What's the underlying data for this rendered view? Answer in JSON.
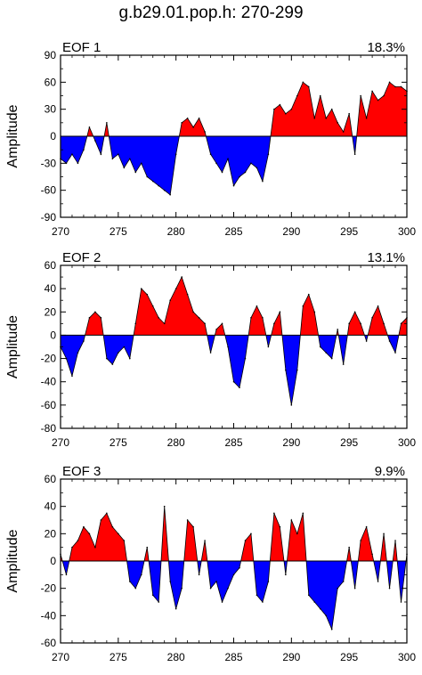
{
  "title": "g.b29.01.pop.h: 270-299",
  "colors": {
    "positive": "#ff0000",
    "negative": "#0000ff",
    "axis": "#000000"
  },
  "chart_data": [
    {
      "type": "area",
      "panel_label": "EOF 1",
      "variance_label": "18.3%",
      "ylabel": "Amplitude",
      "xlim": [
        270,
        300
      ],
      "ylim": [
        -90,
        90
      ],
      "xticks": [
        270,
        275,
        280,
        285,
        290,
        295,
        300
      ],
      "yticks": [
        -90,
        -60,
        -30,
        0,
        30,
        60,
        90
      ],
      "x": [
        270,
        270.5,
        271,
        271.5,
        272,
        272.5,
        273,
        273.5,
        274,
        274.5,
        275,
        275.5,
        276,
        276.5,
        277,
        277.5,
        278,
        278.5,
        279,
        279.5,
        280,
        280.5,
        281,
        281.5,
        282,
        282.5,
        283,
        283.5,
        284,
        284.5,
        285,
        285.5,
        286,
        286.5,
        287,
        287.5,
        288,
        288.5,
        289,
        289.5,
        290,
        290.5,
        291,
        291.5,
        292,
        292.5,
        293,
        293.5,
        294,
        294.5,
        295,
        295.5,
        296,
        296.5,
        297,
        297.5,
        298,
        298.5,
        299,
        299.5,
        300
      ],
      "y": [
        -25,
        -30,
        -20,
        -30,
        -15,
        10,
        -5,
        -20,
        15,
        -25,
        -20,
        -35,
        -25,
        -40,
        -30,
        -45,
        -50,
        -55,
        -60,
        -65,
        -20,
        15,
        20,
        10,
        20,
        5,
        -20,
        -30,
        -40,
        -25,
        -55,
        -45,
        -40,
        -30,
        -35,
        -50,
        -20,
        30,
        35,
        25,
        30,
        45,
        60,
        55,
        20,
        45,
        20,
        30,
        15,
        5,
        25,
        -20,
        45,
        20,
        50,
        40,
        45,
        60,
        55,
        55,
        50
      ]
    },
    {
      "type": "area",
      "panel_label": "EOF 2",
      "variance_label": "13.1%",
      "ylabel": "Amplitude",
      "xlim": [
        270,
        300
      ],
      "ylim": [
        -80,
        60
      ],
      "xticks": [
        270,
        275,
        280,
        285,
        290,
        295,
        300
      ],
      "yticks": [
        -80,
        -60,
        -40,
        -20,
        0,
        20,
        40,
        60
      ],
      "x": [
        270,
        270.5,
        271,
        271.5,
        272,
        272.5,
        273,
        273.5,
        274,
        274.5,
        275,
        275.5,
        276,
        276.5,
        277,
        277.5,
        278,
        278.5,
        279,
        279.5,
        280,
        280.5,
        281,
        281.5,
        282,
        282.5,
        283,
        283.5,
        284,
        284.5,
        285,
        285.5,
        286,
        286.5,
        287,
        287.5,
        288,
        288.5,
        289,
        289.5,
        290,
        290.5,
        291,
        291.5,
        292,
        292.5,
        293,
        293.5,
        294,
        294.5,
        295,
        295.5,
        296,
        296.5,
        297,
        297.5,
        298,
        298.5,
        299,
        299.5,
        300
      ],
      "y": [
        -10,
        -20,
        -35,
        -15,
        -5,
        15,
        20,
        15,
        -20,
        -25,
        -15,
        -10,
        -20,
        10,
        40,
        35,
        25,
        15,
        10,
        30,
        40,
        50,
        35,
        20,
        15,
        10,
        -15,
        5,
        10,
        -10,
        -40,
        -45,
        -20,
        15,
        25,
        15,
        -10,
        10,
        20,
        -30,
        -60,
        -30,
        25,
        35,
        20,
        -10,
        -15,
        -20,
        5,
        -25,
        10,
        20,
        10,
        -5,
        15,
        25,
        10,
        -5,
        -15,
        10,
        15
      ]
    },
    {
      "type": "area",
      "panel_label": "EOF 3",
      "variance_label": "9.9%",
      "ylabel": "Amplitude",
      "xlim": [
        270,
        300
      ],
      "ylim": [
        -60,
        60
      ],
      "xticks": [
        270,
        275,
        280,
        285,
        290,
        295,
        300
      ],
      "yticks": [
        -60,
        -40,
        -20,
        0,
        20,
        40,
        60
      ],
      "x": [
        270,
        270.5,
        271,
        271.5,
        272,
        272.5,
        273,
        273.5,
        274,
        274.5,
        275,
        275.5,
        276,
        276.5,
        277,
        277.5,
        278,
        278.5,
        279,
        279.5,
        280,
        280.5,
        281,
        281.5,
        282,
        282.5,
        283,
        283.5,
        284,
        284.5,
        285,
        285.5,
        286,
        286.5,
        287,
        287.5,
        288,
        288.5,
        289,
        289.5,
        290,
        290.5,
        291,
        291.5,
        292,
        292.5,
        293,
        293.5,
        294,
        294.5,
        295,
        295.5,
        296,
        296.5,
        297,
        297.5,
        298,
        298.5,
        299,
        299.5,
        300
      ],
      "y": [
        5,
        -10,
        10,
        15,
        25,
        20,
        10,
        30,
        35,
        25,
        20,
        15,
        -15,
        -20,
        -10,
        10,
        -25,
        -30,
        40,
        -15,
        -35,
        -20,
        30,
        25,
        -10,
        15,
        -20,
        -15,
        -30,
        -20,
        -10,
        -5,
        15,
        20,
        -25,
        -30,
        -15,
        35,
        25,
        -10,
        30,
        20,
        35,
        -25,
        -30,
        -35,
        -40,
        -50,
        -20,
        -15,
        10,
        -20,
        15,
        25,
        5,
        -15,
        20,
        -20,
        15,
        -30,
        5
      ]
    }
  ]
}
